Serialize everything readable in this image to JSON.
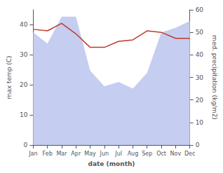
{
  "chart_data": {
    "type": "line",
    "categories": [
      "Jan",
      "Feb",
      "Mar",
      "Apr",
      "May",
      "Jun",
      "Jul",
      "Aug",
      "Sep",
      "Oct",
      "Nov",
      "Dec"
    ],
    "series": [
      {
        "type": "area",
        "color": "#c5cef0",
        "axis": "y2",
        "values": [
          50,
          45,
          57,
          57,
          33,
          26,
          28,
          25,
          32,
          50,
          52,
          55
        ]
      },
      {
        "type": "line",
        "color": "#c0392b",
        "values": [
          38.5,
          38.0,
          40.5,
          37.0,
          32.5,
          32.5,
          34.5,
          35.0,
          38.0,
          37.5,
          35.5,
          35.5
        ]
      }
    ],
    "xlabel": "date (month)",
    "ylabel": "max temp (C)",
    "y2label": "med. precipitation (kg/m2)",
    "ylim": [
      0,
      45
    ],
    "yticks": [
      0,
      10,
      20,
      30,
      40
    ],
    "y2lim": [
      0,
      60
    ],
    "y2ticks": [
      0,
      10,
      20,
      30,
      40,
      50,
      60
    ],
    "grid": false
  }
}
